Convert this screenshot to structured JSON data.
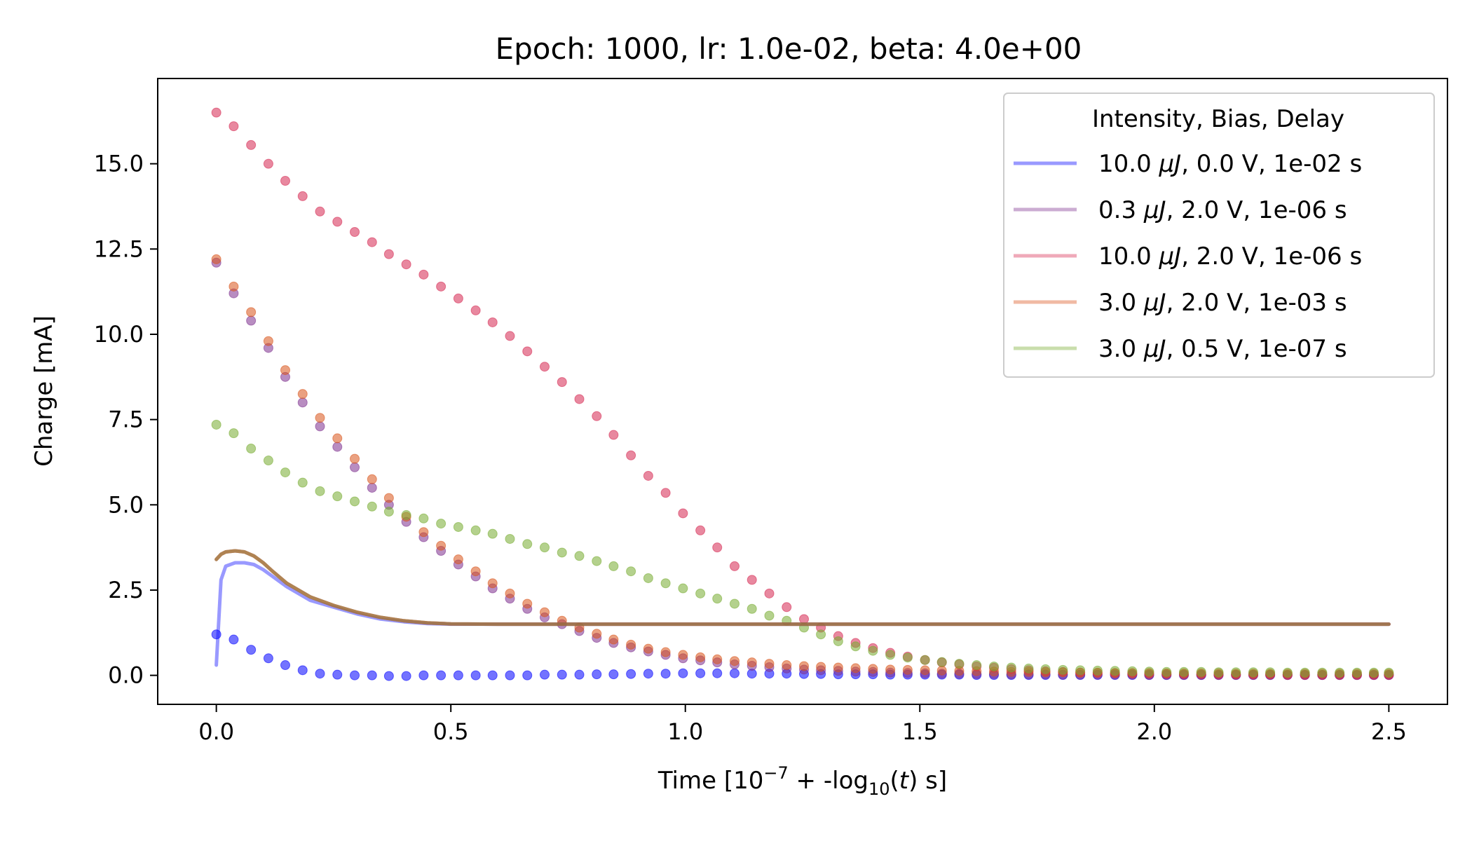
{
  "chart_data": {
    "type": "line",
    "title": "Epoch: 1000, lr: 1.0e-02, beta: 4.0e+00",
    "xlabel": {
      "prefix": "Time [10",
      "exp": "−7",
      "mid": " + -log",
      "sub": "10",
      "paren_open": "(",
      "var": "t",
      "suffix": ") s]"
    },
    "ylabel": "Charge [mA]",
    "xlim": [
      -0.125,
      2.625
    ],
    "ylim": [
      -0.85,
      17.5
    ],
    "xticks": [
      0.0,
      0.5,
      1.0,
      1.5,
      2.0,
      2.5
    ],
    "xtick_labels": [
      "0.0",
      "0.5",
      "1.0",
      "1.5",
      "2.0",
      "2.5"
    ],
    "yticks": [
      0.0,
      2.5,
      5.0,
      7.5,
      10.0,
      12.5,
      15.0
    ],
    "ytick_labels": [
      "0.0",
      "2.5",
      "5.0",
      "7.5",
      "10.0",
      "12.5",
      "15.0"
    ],
    "grid": false,
    "legend": {
      "title": "Intensity, Bias, Delay",
      "position": "top-right"
    },
    "series": [
      {
        "name": "10.0 μJ, 0.0 V, 1e-02 s",
        "name_parts": [
          "10.0 ",
          "μJ",
          ", 0.0 V, 1e-02 s"
        ],
        "color": "#0000ff",
        "line": {
          "x": [
            0.0,
            0.01,
            0.02,
            0.04,
            0.06,
            0.08,
            0.1,
            0.12,
            0.15,
            0.2,
            0.25,
            0.3,
            0.35,
            0.4,
            0.45,
            0.5,
            0.6,
            0.8,
            1.0,
            1.5,
            2.0,
            2.5
          ],
          "y": [
            0.3,
            2.8,
            3.2,
            3.3,
            3.3,
            3.25,
            3.1,
            2.9,
            2.6,
            2.2,
            2.0,
            1.8,
            1.65,
            1.57,
            1.52,
            1.5,
            1.5,
            1.5,
            1.5,
            1.5,
            1.5,
            1.5
          ]
        },
        "points": {
          "x": [
            0.0,
            0.037,
            0.074,
            0.111,
            0.147,
            0.184,
            0.221,
            0.258,
            0.295,
            0.332,
            0.368,
            0.405,
            0.442,
            0.479,
            0.516,
            0.553,
            0.589,
            0.626,
            0.663,
            0.7,
            0.737,
            0.774,
            0.811,
            0.847,
            0.884,
            0.921,
            0.958,
            0.995,
            1.032,
            1.068,
            1.105,
            1.142,
            1.179,
            1.216,
            1.253,
            1.289,
            1.326,
            1.363,
            1.4,
            1.437,
            1.474,
            1.511,
            1.547,
            1.584,
            1.621,
            1.658,
            1.695,
            1.732,
            1.768,
            1.805,
            1.842,
            1.879,
            1.916,
            1.953,
            1.989,
            2.026,
            2.063,
            2.1,
            2.137,
            2.174,
            2.211,
            2.247,
            2.284,
            2.321,
            2.358,
            2.395,
            2.432,
            2.468,
            2.5
          ],
          "y": [
            1.2,
            1.05,
            0.75,
            0.5,
            0.3,
            0.15,
            0.05,
            0.02,
            0.0,
            0.0,
            -0.02,
            -0.02,
            0.0,
            0.0,
            0.0,
            0.0,
            0.0,
            0.0,
            0.0,
            0.02,
            0.02,
            0.02,
            0.03,
            0.03,
            0.04,
            0.05,
            0.05,
            0.06,
            0.06,
            0.06,
            0.06,
            0.05,
            0.05,
            0.05,
            0.04,
            0.04,
            0.03,
            0.03,
            0.03,
            0.02,
            0.02,
            0.02,
            0.02,
            0.02,
            0.01,
            0.01,
            0.01,
            0.01,
            0.01,
            0.01,
            0.01,
            0.01,
            0.01,
            0.01,
            0.01,
            0.01,
            0.01,
            0.01,
            0.01,
            0.01,
            0.01,
            0.01,
            0.01,
            0.01,
            0.01,
            0.01,
            0.01,
            0.01,
            0.01
          ]
        }
      },
      {
        "name": "0.3 μJ, 2.0 V, 1e-06 s",
        "name_parts": [
          "0.3 ",
          "μJ",
          ", 2.0 V, 1e-06 s"
        ],
        "color": "#7e2f8e",
        "line": {
          "x": [
            0.0,
            0.01,
            0.02,
            0.04,
            0.06,
            0.08,
            0.1,
            0.12,
            0.15,
            0.2,
            0.25,
            0.3,
            0.35,
            0.4,
            0.45,
            0.5,
            0.6,
            0.8,
            1.0,
            1.5,
            2.0,
            2.5
          ],
          "y": [
            3.4,
            3.55,
            3.62,
            3.65,
            3.62,
            3.5,
            3.3,
            3.05,
            2.7,
            2.3,
            2.05,
            1.85,
            1.7,
            1.6,
            1.54,
            1.51,
            1.5,
            1.5,
            1.5,
            1.5,
            1.5,
            1.5
          ]
        },
        "points": {
          "x": [
            0.0,
            0.037,
            0.074,
            0.111,
            0.147,
            0.184,
            0.221,
            0.258,
            0.295,
            0.332,
            0.368,
            0.405,
            0.442,
            0.479,
            0.516,
            0.553,
            0.589,
            0.626,
            0.663,
            0.7,
            0.737,
            0.774,
            0.811,
            0.847,
            0.884,
            0.921,
            0.958,
            0.995,
            1.032,
            1.068,
            1.105,
            1.142,
            1.179,
            1.216,
            1.253,
            1.289,
            1.326,
            1.363,
            1.4,
            1.437,
            1.474,
            1.511,
            1.547,
            1.584,
            1.621,
            1.658,
            1.695,
            1.732,
            1.768,
            1.805,
            1.842,
            1.879,
            1.916,
            1.953,
            1.989,
            2.026,
            2.063,
            2.1,
            2.137,
            2.174,
            2.211,
            2.247,
            2.284,
            2.321,
            2.358,
            2.395,
            2.432,
            2.468,
            2.5
          ],
          "y": [
            12.1,
            11.2,
            10.4,
            9.6,
            8.75,
            8.0,
            7.3,
            6.7,
            6.1,
            5.5,
            5.0,
            4.5,
            4.05,
            3.65,
            3.25,
            2.9,
            2.55,
            2.25,
            1.95,
            1.7,
            1.5,
            1.3,
            1.1,
            0.95,
            0.82,
            0.7,
            0.6,
            0.5,
            0.44,
            0.38,
            0.32,
            0.28,
            0.24,
            0.2,
            0.17,
            0.15,
            0.13,
            0.11,
            0.1,
            0.08,
            0.07,
            0.06,
            0.05,
            0.05,
            0.04,
            0.04,
            0.03,
            0.03,
            0.03,
            0.02,
            0.02,
            0.02,
            0.02,
            0.02,
            0.01,
            0.01,
            0.01,
            0.01,
            0.01,
            0.01,
            0.01,
            0.01,
            0.01,
            0.01,
            0.01,
            0.01,
            0.01,
            0.01,
            0.01
          ]
        }
      },
      {
        "name": "10.0 μJ, 2.0 V, 1e-06 s",
        "name_parts": [
          "10.0 ",
          "μJ",
          ", 2.0 V, 1e-06 s"
        ],
        "color": "#d62750",
        "line": {
          "x": [
            0.0,
            0.01,
            0.02,
            0.04,
            0.06,
            0.08,
            0.1,
            0.12,
            0.15,
            0.2,
            0.25,
            0.3,
            0.35,
            0.4,
            0.45,
            0.5,
            0.6,
            0.8,
            1.0,
            1.5,
            2.0,
            2.5
          ],
          "y": [
            3.4,
            3.55,
            3.62,
            3.65,
            3.62,
            3.5,
            3.3,
            3.05,
            2.7,
            2.3,
            2.05,
            1.85,
            1.7,
            1.6,
            1.54,
            1.51,
            1.5,
            1.5,
            1.5,
            1.5,
            1.5,
            1.5
          ]
        },
        "points": {
          "x": [
            0.0,
            0.037,
            0.074,
            0.111,
            0.147,
            0.184,
            0.221,
            0.258,
            0.295,
            0.332,
            0.368,
            0.405,
            0.442,
            0.479,
            0.516,
            0.553,
            0.589,
            0.626,
            0.663,
            0.7,
            0.737,
            0.774,
            0.811,
            0.847,
            0.884,
            0.921,
            0.958,
            0.995,
            1.032,
            1.068,
            1.105,
            1.142,
            1.179,
            1.216,
            1.253,
            1.289,
            1.326,
            1.363,
            1.4,
            1.437,
            1.474,
            1.511,
            1.547,
            1.584,
            1.621,
            1.658,
            1.695,
            1.732,
            1.768,
            1.805,
            1.842,
            1.879,
            1.916,
            1.953,
            1.989,
            2.026,
            2.063,
            2.1,
            2.137,
            2.174,
            2.211,
            2.247,
            2.284,
            2.321,
            2.358,
            2.395,
            2.432,
            2.468,
            2.5
          ],
          "y": [
            16.5,
            16.1,
            15.55,
            15.0,
            14.5,
            14.05,
            13.6,
            13.3,
            13.0,
            12.7,
            12.35,
            12.05,
            11.75,
            11.4,
            11.05,
            10.7,
            10.35,
            9.95,
            9.5,
            9.05,
            8.6,
            8.1,
            7.6,
            7.05,
            6.45,
            5.85,
            5.35,
            4.75,
            4.25,
            3.75,
            3.2,
            2.8,
            2.4,
            2.0,
            1.65,
            1.4,
            1.15,
            0.95,
            0.8,
            0.66,
            0.55,
            0.45,
            0.38,
            0.32,
            0.26,
            0.22,
            0.18,
            0.15,
            0.12,
            0.1,
            0.08,
            0.07,
            0.06,
            0.05,
            0.04,
            0.04,
            0.03,
            0.03,
            0.02,
            0.02,
            0.02,
            0.02,
            0.01,
            0.01,
            0.01,
            0.01,
            0.01,
            0.01,
            0.01
          ]
        }
      },
      {
        "name": "3.0 μJ, 2.0 V, 1e-03 s",
        "name_parts": [
          "3.0 ",
          "μJ",
          ", 2.0 V, 1e-03 s"
        ],
        "color": "#d95319",
        "line": {
          "x": [
            0.0,
            0.01,
            0.02,
            0.04,
            0.06,
            0.08,
            0.1,
            0.12,
            0.15,
            0.2,
            0.25,
            0.3,
            0.35,
            0.4,
            0.45,
            0.5,
            0.6,
            0.8,
            1.0,
            1.5,
            2.0,
            2.5
          ],
          "y": [
            3.4,
            3.55,
            3.62,
            3.65,
            3.62,
            3.5,
            3.3,
            3.05,
            2.7,
            2.3,
            2.05,
            1.85,
            1.7,
            1.6,
            1.54,
            1.51,
            1.5,
            1.5,
            1.5,
            1.5,
            1.5,
            1.5
          ]
        },
        "points": {
          "x": [
            0.0,
            0.037,
            0.074,
            0.111,
            0.147,
            0.184,
            0.221,
            0.258,
            0.295,
            0.332,
            0.368,
            0.405,
            0.442,
            0.479,
            0.516,
            0.553,
            0.589,
            0.626,
            0.663,
            0.7,
            0.737,
            0.774,
            0.811,
            0.847,
            0.884,
            0.921,
            0.958,
            0.995,
            1.032,
            1.068,
            1.105,
            1.142,
            1.179,
            1.216,
            1.253,
            1.289,
            1.326,
            1.363,
            1.4,
            1.437,
            1.474,
            1.511,
            1.547,
            1.584,
            1.621,
            1.658,
            1.695,
            1.732,
            1.768,
            1.805,
            1.842,
            1.879,
            1.916,
            1.953,
            1.989,
            2.026,
            2.063,
            2.1,
            2.137,
            2.174,
            2.211,
            2.247,
            2.284,
            2.321,
            2.358,
            2.395,
            2.432,
            2.468,
            2.5
          ],
          "y": [
            12.2,
            11.4,
            10.65,
            9.8,
            8.95,
            8.25,
            7.55,
            6.95,
            6.35,
            5.75,
            5.2,
            4.65,
            4.2,
            3.8,
            3.4,
            3.05,
            2.7,
            2.4,
            2.1,
            1.85,
            1.6,
            1.4,
            1.22,
            1.05,
            0.9,
            0.78,
            0.68,
            0.6,
            0.53,
            0.47,
            0.42,
            0.38,
            0.34,
            0.3,
            0.27,
            0.25,
            0.23,
            0.21,
            0.19,
            0.17,
            0.16,
            0.15,
            0.14,
            0.13,
            0.12,
            0.11,
            0.1,
            0.1,
            0.09,
            0.09,
            0.08,
            0.08,
            0.07,
            0.07,
            0.07,
            0.06,
            0.06,
            0.06,
            0.06,
            0.05,
            0.05,
            0.05,
            0.05,
            0.05,
            0.05,
            0.05,
            0.05,
            0.05,
            0.05
          ]
        }
      },
      {
        "name": "3.0 μJ, 0.5 V, 1e-07 s",
        "name_parts": [
          "3.0 ",
          "μJ",
          ", 0.5 V, 1e-07 s"
        ],
        "color": "#77ac30",
        "line": {
          "x": [
            0.0,
            0.01,
            0.02,
            0.04,
            0.06,
            0.08,
            0.1,
            0.12,
            0.15,
            0.2,
            0.25,
            0.3,
            0.35,
            0.4,
            0.45,
            0.5,
            0.6,
            0.8,
            1.0,
            1.5,
            2.0,
            2.5
          ],
          "y": [
            3.4,
            3.55,
            3.62,
            3.65,
            3.62,
            3.5,
            3.3,
            3.05,
            2.7,
            2.3,
            2.05,
            1.85,
            1.7,
            1.6,
            1.54,
            1.51,
            1.5,
            1.5,
            1.5,
            1.5,
            1.5,
            1.5
          ]
        },
        "points": {
          "x": [
            0.0,
            0.037,
            0.074,
            0.111,
            0.147,
            0.184,
            0.221,
            0.258,
            0.295,
            0.332,
            0.368,
            0.405,
            0.442,
            0.479,
            0.516,
            0.553,
            0.589,
            0.626,
            0.663,
            0.7,
            0.737,
            0.774,
            0.811,
            0.847,
            0.884,
            0.921,
            0.958,
            0.995,
            1.032,
            1.068,
            1.105,
            1.142,
            1.179,
            1.216,
            1.253,
            1.289,
            1.326,
            1.363,
            1.4,
            1.437,
            1.474,
            1.511,
            1.547,
            1.584,
            1.621,
            1.658,
            1.695,
            1.732,
            1.768,
            1.805,
            1.842,
            1.879,
            1.916,
            1.953,
            1.989,
            2.026,
            2.063,
            2.1,
            2.137,
            2.174,
            2.211,
            2.247,
            2.284,
            2.321,
            2.358,
            2.395,
            2.432,
            2.468,
            2.5
          ],
          "y": [
            7.35,
            7.1,
            6.65,
            6.3,
            5.95,
            5.65,
            5.4,
            5.25,
            5.1,
            4.95,
            4.8,
            4.7,
            4.6,
            4.45,
            4.35,
            4.25,
            4.15,
            4.0,
            3.85,
            3.75,
            3.6,
            3.5,
            3.35,
            3.2,
            3.05,
            2.85,
            2.7,
            2.55,
            2.4,
            2.25,
            2.1,
            1.95,
            1.75,
            1.6,
            1.4,
            1.2,
            1.0,
            0.85,
            0.72,
            0.6,
            0.52,
            0.45,
            0.39,
            0.34,
            0.3,
            0.26,
            0.23,
            0.2,
            0.18,
            0.16,
            0.15,
            0.14,
            0.13,
            0.12,
            0.11,
            0.1,
            0.1,
            0.1,
            0.09,
            0.09,
            0.09,
            0.09,
            0.08,
            0.08,
            0.08,
            0.08,
            0.08,
            0.08,
            0.08
          ]
        }
      }
    ]
  }
}
